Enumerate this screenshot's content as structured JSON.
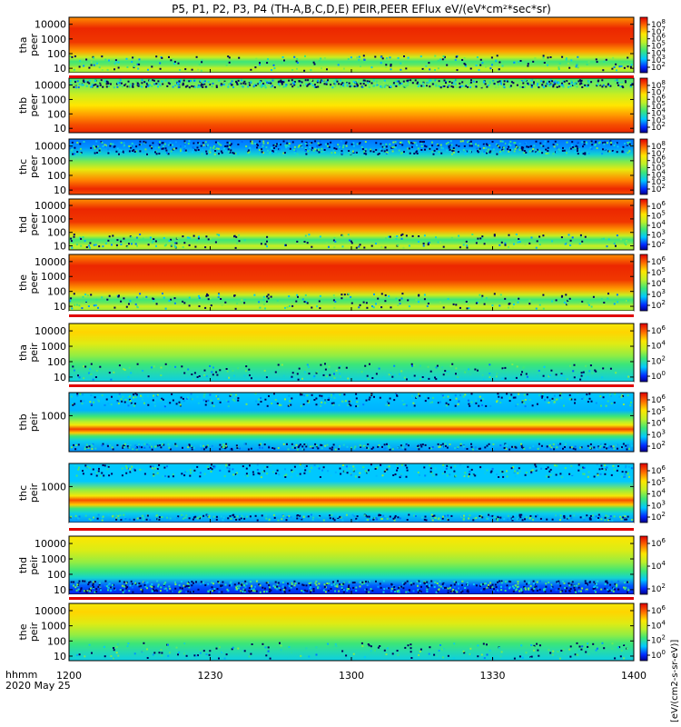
{
  "title": "P5, P1, P2, P3, P4 (TH-A,B,C,D,E) PEIR,PEER EFlux eV/(eV*cm²*sec*sr)",
  "colorbar_units": "[eV/(cm2-s-sr-eV)]",
  "chart_data": {
    "type": "heatmap",
    "date": "2020 May 25",
    "xlabel": "hhmm",
    "x_tick_labels": [
      "1200",
      "1230",
      "1300",
      "1330",
      "1400"
    ],
    "xlim": [
      "12:00",
      "14:00"
    ],
    "y_scale": "log",
    "panels": [
      {
        "id": "tha-peer",
        "ylabel": [
          "tha",
          "peer"
        ],
        "ylim": [
          5,
          30000
        ],
        "y_ticks": [
          "10000",
          "1000",
          "100",
          "10"
        ],
        "z_ticks": [
          "10^8",
          "10^7",
          "10^6",
          "10^5",
          "10^4",
          "10^3",
          "10^2"
        ],
        "pattern": "electron-hot"
      },
      {
        "id": "thb-peer",
        "ylabel": [
          "thb",
          "peer"
        ],
        "ylim": [
          5,
          30000
        ],
        "y_ticks": [
          "10000",
          "1000",
          "100",
          "10"
        ],
        "z_ticks": [
          "10^8",
          "10^7",
          "10^6",
          "10^5",
          "10^4",
          "10^3",
          "10^2"
        ],
        "pattern": "electron-noisy-top"
      },
      {
        "id": "thc-peer",
        "ylabel": [
          "thc",
          "peer"
        ],
        "ylim": [
          5,
          30000
        ],
        "y_ticks": [
          "10000",
          "1000",
          "100",
          "10"
        ],
        "z_ticks": [
          "10^8",
          "10^7",
          "10^6",
          "10^5",
          "10^4",
          "10^3",
          "10^2"
        ],
        "pattern": "electron-blue-top"
      },
      {
        "id": "thd-peer",
        "ylabel": [
          "thd",
          "peer"
        ],
        "ylim": [
          5,
          30000
        ],
        "y_ticks": [
          "10000",
          "1000",
          "100",
          "10"
        ],
        "z_ticks": [
          "10^6",
          "10^5",
          "10^4",
          "10^3",
          "10^2"
        ],
        "pattern": "electron-hot"
      },
      {
        "id": "the-peer",
        "ylabel": [
          "the",
          "peer"
        ],
        "ylim": [
          5,
          30000
        ],
        "y_ticks": [
          "10000",
          "1000",
          "100",
          "10"
        ],
        "z_ticks": [
          "10^6",
          "10^5",
          "10^4",
          "10^3",
          "10^2"
        ],
        "pattern": "electron-hot"
      },
      {
        "id": "tha-peir",
        "ylabel": [
          "tha",
          "peir"
        ],
        "ylim": [
          5,
          30000
        ],
        "y_ticks": [
          "10000",
          "1000",
          "100",
          "10"
        ],
        "z_ticks": [
          "10^6",
          "10^4",
          "10^2",
          "10^0"
        ],
        "pattern": "ion"
      },
      {
        "id": "thb-peir",
        "ylabel": [
          "thb",
          "peir"
        ],
        "ylim": [
          5,
          30000
        ],
        "y_ticks": [
          "1000"
        ],
        "z_ticks": [
          "10^6",
          "10^5",
          "10^4",
          "10^3",
          "10^2"
        ],
        "pattern": "ion-bands"
      },
      {
        "id": "thc-peir",
        "ylabel": [
          "thc",
          "peir"
        ],
        "ylim": [
          5,
          30000
        ],
        "y_ticks": [
          "1000"
        ],
        "z_ticks": [
          "10^6",
          "10^5",
          "10^4",
          "10^3",
          "10^2"
        ],
        "pattern": "ion-bands-green"
      },
      {
        "id": "thd-peir",
        "ylabel": [
          "thd",
          "peir"
        ],
        "ylim": [
          5,
          30000
        ],
        "y_ticks": [
          "10000",
          "1000",
          "100",
          "10"
        ],
        "z_ticks": [
          "10^6",
          "10^4",
          "10^2"
        ],
        "pattern": "ion-noisy-bottom"
      },
      {
        "id": "the-peir",
        "ylabel": [
          "the",
          "peir"
        ],
        "ylim": [
          5,
          30000
        ],
        "y_ticks": [
          "10000",
          "1000",
          "100",
          "10"
        ],
        "z_ticks": [
          "10^6",
          "10^4",
          "10^2",
          "10^0"
        ],
        "pattern": "ion"
      }
    ]
  }
}
